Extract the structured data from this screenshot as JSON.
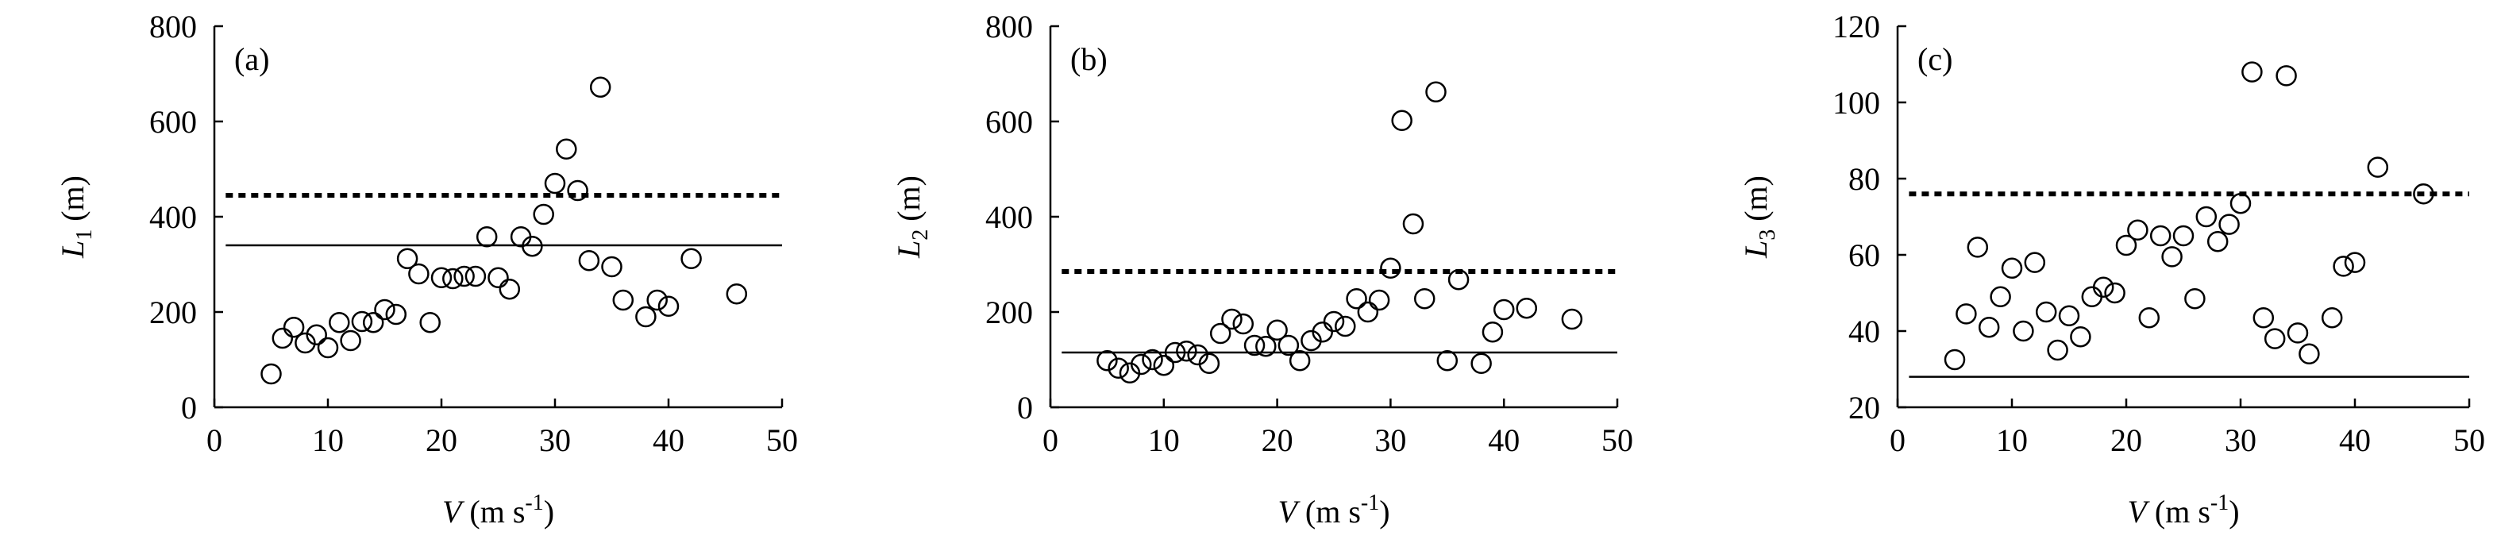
{
  "chart_data": [
    {
      "type": "scatter",
      "panel_label": "(a)",
      "ylabel": {
        "var": "L",
        "sub": "1",
        "unit": " (m)"
      },
      "xlabel": {
        "var": "V",
        "unit": " (m s",
        "sup": "-1",
        "close": ")"
      },
      "xlim": [
        0,
        50
      ],
      "ylim": [
        0,
        800
      ],
      "xticks": [
        "0",
        "10",
        "20",
        "30",
        "40",
        "50"
      ],
      "yticks": [
        "0",
        "200",
        "400",
        "600",
        "800"
      ],
      "solid_line": 340,
      "dotted_line": 445,
      "points": [
        [
          5,
          70
        ],
        [
          6,
          145
        ],
        [
          7,
          168
        ],
        [
          8,
          135
        ],
        [
          9,
          152
        ],
        [
          10,
          125
        ],
        [
          11,
          178
        ],
        [
          12,
          140
        ],
        [
          13,
          180
        ],
        [
          14,
          178
        ],
        [
          15,
          205
        ],
        [
          16,
          195
        ],
        [
          17,
          312
        ],
        [
          18,
          280
        ],
        [
          19,
          178
        ],
        [
          20,
          272
        ],
        [
          21,
          270
        ],
        [
          22,
          275
        ],
        [
          23,
          275
        ],
        [
          24,
          358
        ],
        [
          25,
          272
        ],
        [
          26,
          248
        ],
        [
          27,
          358
        ],
        [
          28,
          338
        ],
        [
          29,
          405
        ],
        [
          30,
          470
        ],
        [
          31,
          542
        ],
        [
          32,
          455
        ],
        [
          33,
          308
        ],
        [
          34,
          672
        ],
        [
          35,
          295
        ],
        [
          36,
          225
        ],
        [
          38,
          190
        ],
        [
          39,
          225
        ],
        [
          40,
          212
        ],
        [
          42,
          312
        ],
        [
          46,
          238
        ]
      ]
    },
    {
      "type": "scatter",
      "panel_label": "(b)",
      "ylabel": {
        "var": "L",
        "sub": "2",
        "unit": " (m)"
      },
      "xlabel": {
        "var": "V",
        "unit": " (m s",
        "sup": "-1",
        "close": ")"
      },
      "xlim": [
        0,
        50
      ],
      "ylim": [
        0,
        800
      ],
      "xticks": [
        "0",
        "10",
        "20",
        "30",
        "40",
        "50"
      ],
      "yticks": [
        "0",
        "200",
        "400",
        "600",
        "800"
      ],
      "solid_line": 115,
      "dotted_line": 285,
      "points": [
        [
          5,
          98
        ],
        [
          6,
          82
        ],
        [
          7,
          72
        ],
        [
          8,
          90
        ],
        [
          9,
          100
        ],
        [
          10,
          88
        ],
        [
          11,
          115
        ],
        [
          12,
          118
        ],
        [
          13,
          110
        ],
        [
          14,
          92
        ],
        [
          15,
          155
        ],
        [
          16,
          185
        ],
        [
          17,
          175
        ],
        [
          18,
          130
        ],
        [
          19,
          128
        ],
        [
          20,
          162
        ],
        [
          21,
          130
        ],
        [
          22,
          98
        ],
        [
          23,
          140
        ],
        [
          24,
          158
        ],
        [
          25,
          180
        ],
        [
          26,
          170
        ],
        [
          27,
          228
        ],
        [
          28,
          200
        ],
        [
          29,
          225
        ],
        [
          30,
          292
        ],
        [
          31,
          602
        ],
        [
          32,
          385
        ],
        [
          33,
          228
        ],
        [
          34,
          662
        ],
        [
          35,
          98
        ],
        [
          36,
          268
        ],
        [
          38,
          92
        ],
        [
          39,
          158
        ],
        [
          40,
          205
        ],
        [
          42,
          208
        ],
        [
          46,
          185
        ]
      ]
    },
    {
      "type": "scatter",
      "panel_label": "(c)",
      "ylabel": {
        "var": "L",
        "sub": "3",
        "unit": " (m)"
      },
      "xlabel": {
        "var": "V",
        "unit": " (m s",
        "sup": "-1",
        "close": ")"
      },
      "xlim": [
        0,
        50
      ],
      "ylim": [
        20,
        120
      ],
      "xticks": [
        "0",
        "10",
        "20",
        "30",
        "40",
        "50"
      ],
      "yticks": [
        "20",
        "40",
        "60",
        "80",
        "100",
        "120"
      ],
      "solid_line": 28,
      "dotted_line": 76,
      "points": [
        [
          5,
          32.5
        ],
        [
          6,
          44.5
        ],
        [
          7,
          62
        ],
        [
          8,
          41
        ],
        [
          9,
          49
        ],
        [
          10,
          56.5
        ],
        [
          11,
          40
        ],
        [
          12,
          58
        ],
        [
          13,
          45
        ],
        [
          14,
          35
        ],
        [
          15,
          44
        ],
        [
          16,
          38.5
        ],
        [
          17,
          49
        ],
        [
          18,
          51.5
        ],
        [
          19,
          50
        ],
        [
          20,
          62.5
        ],
        [
          21,
          66.5
        ],
        [
          22,
          43.5
        ],
        [
          23,
          65
        ],
        [
          24,
          59.5
        ],
        [
          25,
          65
        ],
        [
          26,
          48.5
        ],
        [
          27,
          70
        ],
        [
          28,
          63.5
        ],
        [
          29,
          68
        ],
        [
          30,
          73.5
        ],
        [
          31,
          108
        ],
        [
          32,
          43.5
        ],
        [
          33,
          38
        ],
        [
          34,
          107
        ],
        [
          35,
          39.5
        ],
        [
          36,
          34
        ],
        [
          38,
          43.5
        ],
        [
          39,
          57
        ],
        [
          40,
          58
        ],
        [
          42,
          83
        ],
        [
          46,
          76
        ]
      ]
    }
  ]
}
